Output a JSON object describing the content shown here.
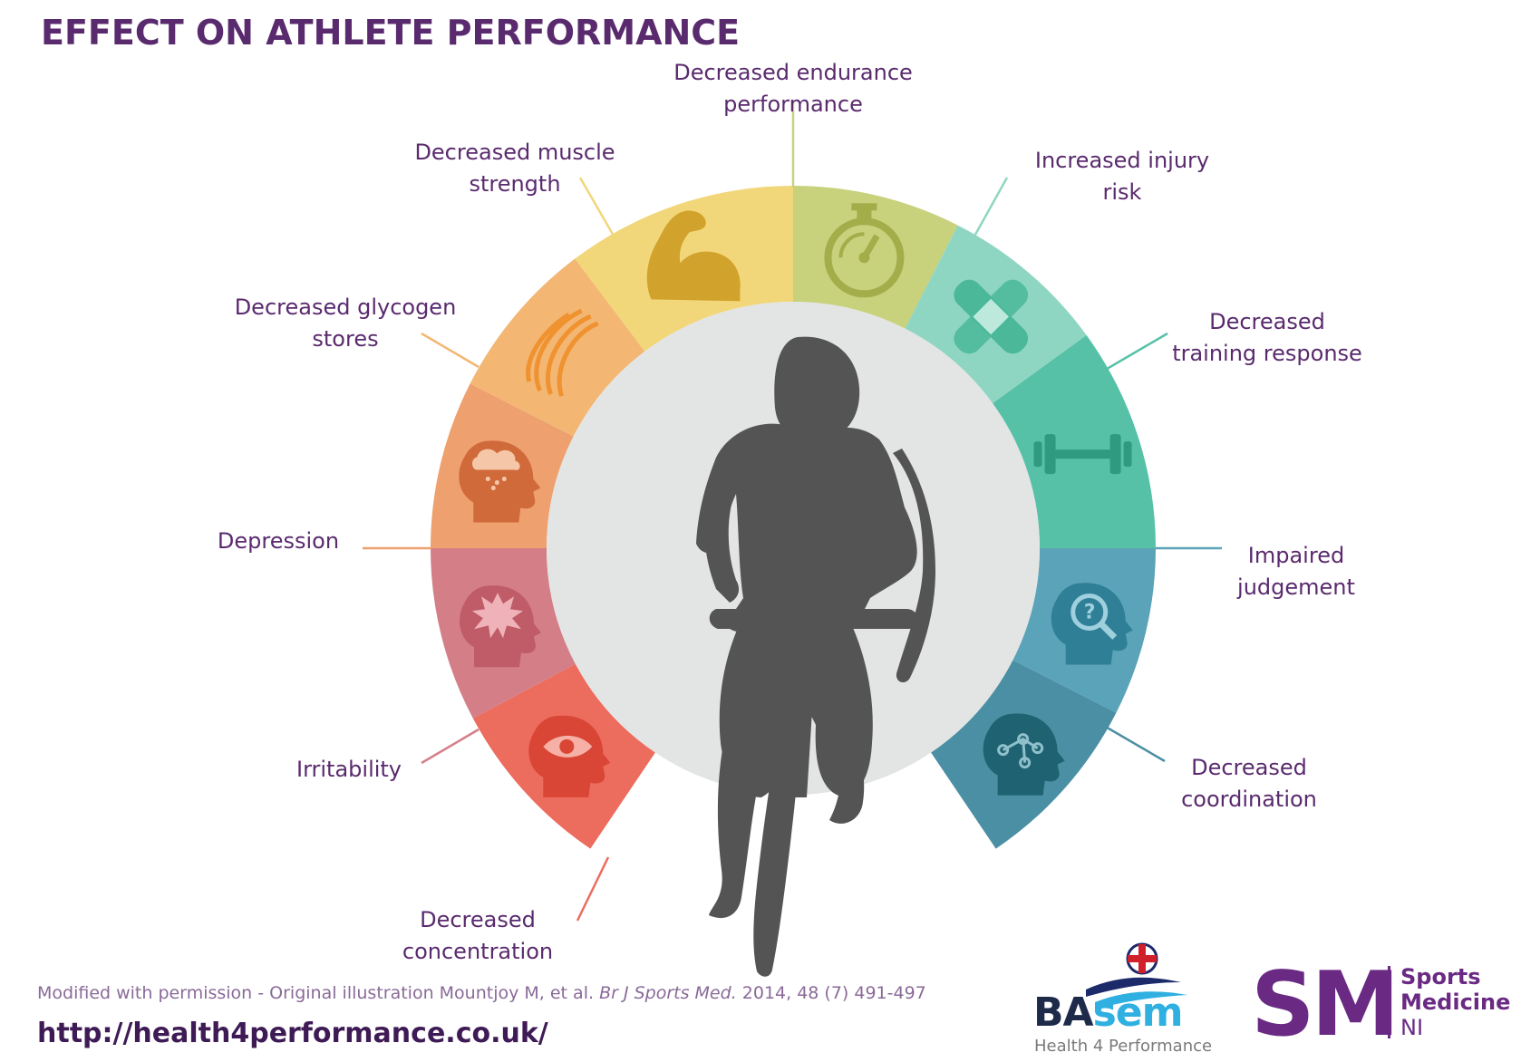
{
  "title": "EFFECT ON ATHLETE PERFORMANCE",
  "colors": {
    "title": "#5a2a6e",
    "label": "#5a2a6e",
    "center_disc": "#e3e4e4",
    "silhouette": "#545454"
  },
  "effects": [
    {
      "lines": [
        "Decreased endurance",
        "performance"
      ],
      "icon": "stopwatch-icon",
      "color": "#c8d17c",
      "icon_color": "#a3ad49"
    },
    {
      "lines": [
        "Increased injury",
        "risk"
      ],
      "icon": "bandage-icon",
      "color": "#8fd6c2",
      "icon_color": "#4ab899"
    },
    {
      "lines": [
        "Decreased",
        "training response"
      ],
      "icon": "dumbbell-icon",
      "color": "#57c1a8",
      "icon_color": "#2f9a7f"
    },
    {
      "lines": [
        "Impaired",
        "judgement"
      ],
      "icon": "head-question-icon",
      "color": "#5ba3b8",
      "icon_color": "#2f7f96"
    },
    {
      "lines": [
        "Decreased",
        "coordination"
      ],
      "icon": "head-network-icon",
      "color": "#4a8fa3",
      "icon_color": "#1f6271"
    },
    {
      "lines": [
        "Decreased",
        "concentration"
      ],
      "icon": "head-eye-icon",
      "color": "#ec6c5e",
      "icon_color": "#d94636"
    },
    {
      "lines": [
        "Irritability"
      ],
      "icon": "head-burst-icon",
      "color": "#d47f87",
      "icon_color": "#bf5c67"
    },
    {
      "lines": [
        "Depression"
      ],
      "icon": "head-raincloud-icon",
      "color": "#eea06e",
      "icon_color": "#d06a3a"
    },
    {
      "lines": [
        "Decreased glycogen",
        "stores"
      ],
      "icon": "muscle-fibre-icon",
      "color": "#f3b673",
      "icon_color": "#ef922f"
    },
    {
      "lines": [
        "Decreased muscle",
        "strength"
      ],
      "icon": "flexed-arm-icon",
      "color": "#f2d67a",
      "icon_color": "#d1a22c"
    }
  ],
  "credit": {
    "prefix": "Modified with permission - Original illustration Mountjoy M, et al. ",
    "journal": "Br J Sports Med.",
    "suffix": " 2014, 48 (7) 491-497"
  },
  "url": "http://health4performance.co.uk/",
  "logos": {
    "basem_ba": "BA",
    "basem_sem": "sem",
    "basem_tagline": "Health 4 Performance",
    "sm_mark": "SM",
    "sm_line1": "Sports",
    "sm_line2": "Medicine",
    "sm_line3": "NI"
  }
}
